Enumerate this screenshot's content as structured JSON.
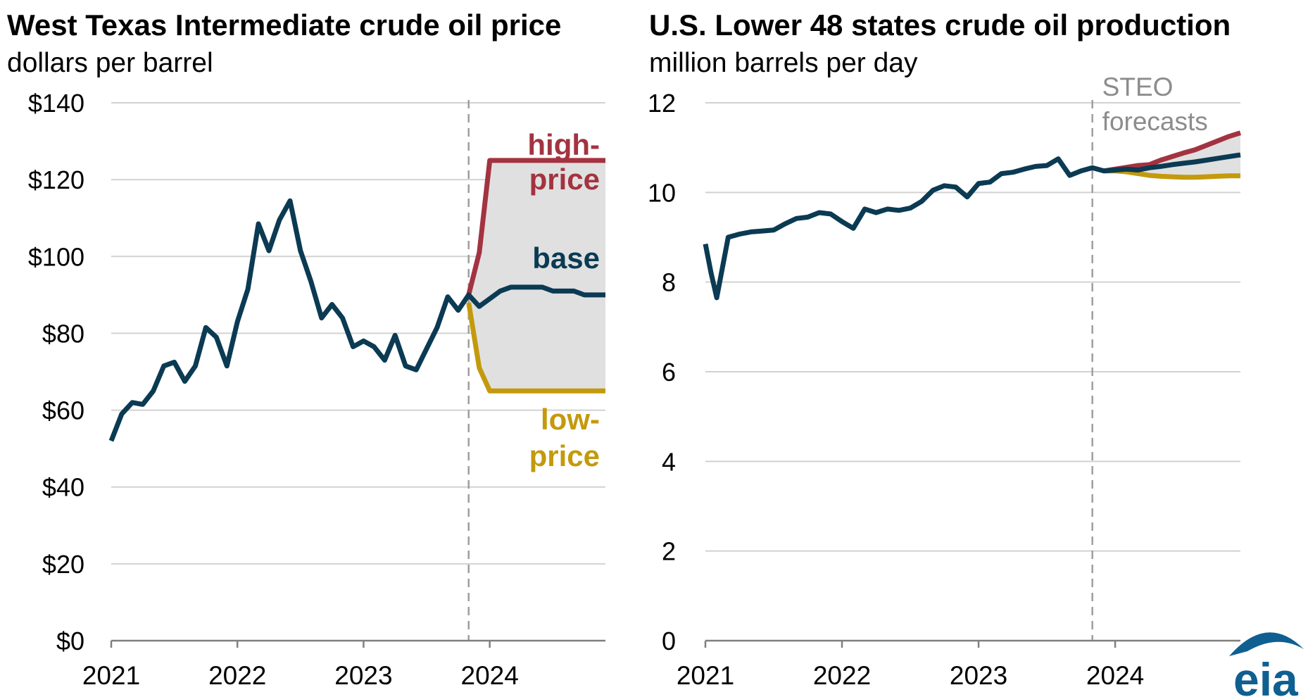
{
  "colors": {
    "base": "#0b3a53",
    "high": "#a33340",
    "low": "#c49a0c",
    "band": "#e0e0e0",
    "grid": "#d2d2d2",
    "forecast_line": "#9e9e9e",
    "annotation": "#8c8c8c",
    "logo": "#0f5f91"
  },
  "logo": {
    "text": "eia",
    "icon": "eia-logo"
  },
  "chart_data": [
    {
      "type": "line",
      "title": "West Texas Intermediate crude oil price",
      "subtitle": "dollars per barrel",
      "ylim": [
        0,
        140
      ],
      "y_ticks": [
        0,
        20,
        40,
        60,
        80,
        100,
        120,
        140
      ],
      "y_tick_labels": [
        "$0",
        "$20",
        "$40",
        "$60",
        "$80",
        "$100",
        "$120",
        "$140"
      ],
      "x_ticks": [
        2021,
        2022,
        2023,
        2024
      ],
      "x_tick_labels": [
        "2021",
        "2022",
        "2023",
        "2024"
      ],
      "xlim": [
        2021.0,
        2024.917
      ],
      "forecast_start": 2023.833,
      "grid": true,
      "series": [
        {
          "name": "base",
          "color_key": "base",
          "x": [
            2021.0,
            2021.083,
            2021.167,
            2021.25,
            2021.333,
            2021.417,
            2021.5,
            2021.583,
            2021.667,
            2021.75,
            2021.833,
            2021.917,
            2022.0,
            2022.083,
            2022.167,
            2022.25,
            2022.333,
            2022.417,
            2022.5,
            2022.583,
            2022.667,
            2022.75,
            2022.833,
            2022.917,
            2023.0,
            2023.083,
            2023.167,
            2023.25,
            2023.333,
            2023.417,
            2023.5,
            2023.583,
            2023.667,
            2023.75,
            2023.833,
            2023.917,
            2024.0,
            2024.083,
            2024.167,
            2024.25,
            2024.333,
            2024.417,
            2024.5,
            2024.583,
            2024.667,
            2024.75,
            2024.833,
            2024.917
          ],
          "values": [
            52,
            59,
            62,
            61.5,
            65,
            71.5,
            72.5,
            67.5,
            71.5,
            81.5,
            79,
            71.5,
            83,
            91.5,
            108.5,
            101.5,
            109.5,
            114.5,
            101.5,
            93.5,
            84,
            87.5,
            84,
            76.5,
            78,
            76.5,
            73,
            79.5,
            71.5,
            70.5,
            76,
            81.5,
            89.5,
            86,
            90,
            87,
            89,
            91,
            92,
            92,
            92,
            92,
            91,
            91,
            91,
            90,
            90,
            90
          ]
        },
        {
          "name": "high-price",
          "color_key": "high",
          "x": [
            2023.833,
            2023.917,
            2024.0,
            2024.083,
            2024.917
          ],
          "values": [
            90,
            101,
            125,
            125,
            125
          ]
        },
        {
          "name": "low-price",
          "color_key": "low",
          "x": [
            2023.833,
            2023.917,
            2024.0,
            2024.083,
            2024.917
          ],
          "values": [
            88,
            71,
            65,
            65,
            65
          ]
        }
      ],
      "labels": [
        {
          "lines": [
            "high-",
            "price"
          ],
          "color_key": "high",
          "x": 2024.917,
          "y": [
            129,
            120
          ]
        },
        {
          "lines": [
            "base"
          ],
          "color_key": "base",
          "x": 2024.917,
          "y": [
            99.5
          ]
        },
        {
          "lines": [
            "low-",
            "price"
          ],
          "color_key": "low",
          "x": 2024.917,
          "y": [
            57.5,
            48
          ]
        }
      ]
    },
    {
      "type": "line",
      "title": "U.S. Lower 48 states crude oil production",
      "subtitle": "million barrels per day",
      "ylim": [
        0,
        12
      ],
      "y_ticks": [
        0,
        2,
        4,
        6,
        8,
        10,
        12
      ],
      "y_tick_labels": [
        "0",
        "2",
        "4",
        "6",
        "8",
        "10",
        "12"
      ],
      "x_ticks": [
        2021,
        2022,
        2023,
        2024
      ],
      "x_tick_labels": [
        "2021",
        "2022",
        "2023",
        "2024"
      ],
      "xlim": [
        2021.0,
        2024.917
      ],
      "forecast_start": 2023.833,
      "forecast_label": [
        "STEO",
        "forecasts"
      ],
      "grid": true,
      "series": [
        {
          "name": "base",
          "color_key": "base",
          "x": [
            2021.0,
            2021.042,
            2021.083,
            2021.167,
            2021.25,
            2021.333,
            2021.417,
            2021.5,
            2021.583,
            2021.667,
            2021.75,
            2021.833,
            2021.917,
            2022.0,
            2022.083,
            2022.167,
            2022.25,
            2022.333,
            2022.417,
            2022.5,
            2022.583,
            2022.667,
            2022.75,
            2022.833,
            2022.917,
            2023.0,
            2023.083,
            2023.167,
            2023.25,
            2023.333,
            2023.417,
            2023.5,
            2023.583,
            2023.667,
            2023.75,
            2023.833,
            2023.917,
            2024.0,
            2024.083,
            2024.167,
            2024.25,
            2024.333,
            2024.417,
            2024.5,
            2024.583,
            2024.667,
            2024.75,
            2024.833,
            2024.917
          ],
          "values": [
            8.85,
            8.2,
            7.65,
            9.0,
            9.07,
            9.12,
            9.14,
            9.16,
            9.3,
            9.42,
            9.45,
            9.55,
            9.52,
            9.35,
            9.2,
            9.63,
            9.55,
            9.63,
            9.6,
            9.65,
            9.8,
            10.05,
            10.15,
            10.12,
            9.9,
            10.2,
            10.23,
            10.42,
            10.45,
            10.52,
            10.58,
            10.6,
            10.75,
            10.38,
            10.48,
            10.55,
            10.48,
            10.5,
            10.52,
            10.5,
            10.55,
            10.58,
            10.62,
            10.65,
            10.68,
            10.72,
            10.76,
            10.8,
            10.84
          ]
        },
        {
          "name": "high-price",
          "color_key": "high",
          "x": [
            2023.917,
            2024.0,
            2024.083,
            2024.167,
            2024.25,
            2024.333,
            2024.417,
            2024.5,
            2024.583,
            2024.667,
            2024.75,
            2024.833,
            2024.917
          ],
          "values": [
            10.48,
            10.52,
            10.56,
            10.6,
            10.62,
            10.72,
            10.8,
            10.88,
            10.95,
            11.05,
            11.15,
            11.25,
            11.33
          ]
        },
        {
          "name": "low-price",
          "color_key": "low",
          "x": [
            2023.917,
            2024.0,
            2024.083,
            2024.167,
            2024.25,
            2024.333,
            2024.417,
            2024.5,
            2024.583,
            2024.667,
            2024.75,
            2024.833,
            2024.917
          ],
          "values": [
            10.48,
            10.48,
            10.46,
            10.42,
            10.38,
            10.36,
            10.35,
            10.34,
            10.34,
            10.35,
            10.36,
            10.37,
            10.37
          ]
        }
      ],
      "labels": []
    }
  ]
}
